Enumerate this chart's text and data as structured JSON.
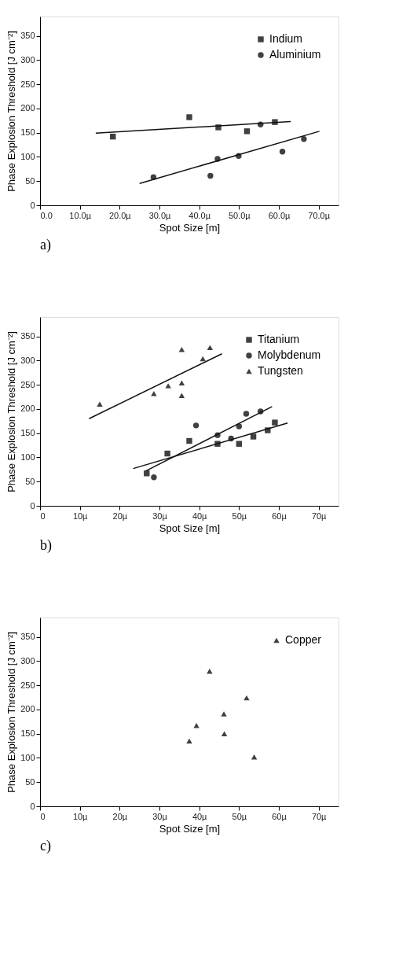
{
  "chart_data": [
    {
      "type": "scatter",
      "xlabel": "Spot Size [m]",
      "ylabel": "Phase Explosion Threshold [J cm⁻²]",
      "annotations": [
        "a)"
      ],
      "xlim": [
        0,
        75
      ],
      "ylim": [
        0,
        390
      ],
      "xticks": [
        {
          "value": 0,
          "label": "0.0"
        },
        {
          "value": 10,
          "label": "10.0µ"
        },
        {
          "value": 20,
          "label": "20.0µ"
        },
        {
          "value": 30,
          "label": "30.0µ"
        },
        {
          "value": 40,
          "label": "40.0µ"
        },
        {
          "value": 50,
          "label": "50.0µ"
        },
        {
          "value": 60,
          "label": "60.0µ"
        },
        {
          "value": 70,
          "label": "70.0µ"
        }
      ],
      "yticks": [
        0,
        50,
        100,
        150,
        200,
        250,
        300,
        350
      ],
      "grid": false,
      "legend": "top right",
      "series": [
        {
          "name": "Indium",
          "color": "#404040",
          "marker": "square",
          "x": [
            18.3,
            37.5,
            44.8,
            52,
            59
          ],
          "values": [
            142,
            182,
            161,
            153,
            172
          ]
        },
        {
          "name": "Aluminium",
          "color": "#404040",
          "marker": "circle",
          "x": [
            28.5,
            42.8,
            44.6,
            49.9,
            55.4,
            60.9,
            66.3
          ],
          "values": [
            58,
            61,
            96,
            102,
            167,
            111,
            137
          ]
        },
        {
          "type": "line",
          "color": "#111111",
          "x": [
            14,
            63
          ],
          "values": [
            149,
            173
          ]
        },
        {
          "type": "line",
          "color": "#111111",
          "x": [
            25,
            70.2
          ],
          "values": [
            45,
            153
          ]
        }
      ]
    },
    {
      "type": "scatter",
      "xlabel": "Spot Size [m]",
      "ylabel": "Phase Explosion Threshold [J cm⁻²]",
      "annotations": [
        "b)"
      ],
      "xlim": [
        0,
        75
      ],
      "ylim": [
        0,
        390
      ],
      "xticks": [
        0,
        {
          "value": 10,
          "label": "10µ"
        },
        {
          "value": 20,
          "label": "20µ"
        },
        {
          "value": 30,
          "label": "30µ"
        },
        {
          "value": 40,
          "label": "40µ"
        },
        {
          "value": 50,
          "label": "50µ"
        },
        {
          "value": 60,
          "label": "60µ"
        },
        {
          "value": 70,
          "label": "70µ"
        }
      ],
      "yticks": [
        0,
        50,
        100,
        150,
        200,
        250,
        300,
        350
      ],
      "grid": false,
      "legend": "top right",
      "series": [
        {
          "name": "Titanium",
          "color": "#404040",
          "marker": "square",
          "x": [
            26.8,
            32,
            37.5,
            44.6,
            50,
            53.6,
            57.2,
            59
          ],
          "values": [
            67,
            108,
            134,
            128,
            128,
            143,
            156,
            172
          ]
        },
        {
          "name": "Molybdenum",
          "color": "#404040",
          "marker": "circle",
          "x": [
            28.6,
            39.2,
            44.6,
            48,
            50,
            51.8,
            55.4
          ],
          "values": [
            59,
            166,
            146,
            139,
            164,
            190,
            195
          ]
        },
        {
          "name": "Tungsten",
          "color": "#404040",
          "marker": "triangle",
          "x": [
            15,
            28.6,
            32.2,
            35.6,
            35.6,
            35.6,
            40.9,
            42.7
          ],
          "values": [
            210,
            232,
            248,
            323,
            254,
            228,
            304,
            327
          ]
        },
        {
          "type": "line",
          "color": "#111111",
          "x": [
            12.3,
            45.7
          ],
          "values": [
            180,
            314
          ]
        },
        {
          "type": "line",
          "color": "#111111",
          "x": [
            26.6,
            58.3
          ],
          "values": [
            72,
            205
          ]
        },
        {
          "type": "line",
          "color": "#111111",
          "x": [
            23.4,
            62.2
          ],
          "values": [
            77,
            171
          ]
        }
      ]
    },
    {
      "type": "scatter",
      "xlabel": "Spot Size [m]",
      "ylabel": "Phase Explosion Threshold [J cm⁻²]",
      "annotations": [
        "c)"
      ],
      "xlim": [
        0,
        75
      ],
      "ylim": [
        0,
        390
      ],
      "xticks": [
        0,
        {
          "value": 10,
          "label": "10µ"
        },
        {
          "value": 20,
          "label": "20µ"
        },
        {
          "value": 30,
          "label": "30µ"
        },
        {
          "value": 40,
          "label": "40µ"
        },
        {
          "value": 50,
          "label": "50µ"
        },
        {
          "value": 60,
          "label": "60µ"
        },
        {
          "value": 70,
          "label": "70µ"
        }
      ],
      "yticks": [
        0,
        50,
        100,
        150,
        200,
        250,
        300,
        350
      ],
      "grid": false,
      "legend": "top right",
      "series": [
        {
          "name": "Copper",
          "color": "#404040",
          "marker": "triangle",
          "x": [
            37.5,
            39.3,
            42.6,
            46.2,
            46.3,
            51.9,
            53.8
          ],
          "values": [
            135,
            167,
            279,
            191,
            150,
            224,
            102
          ]
        }
      ]
    }
  ]
}
